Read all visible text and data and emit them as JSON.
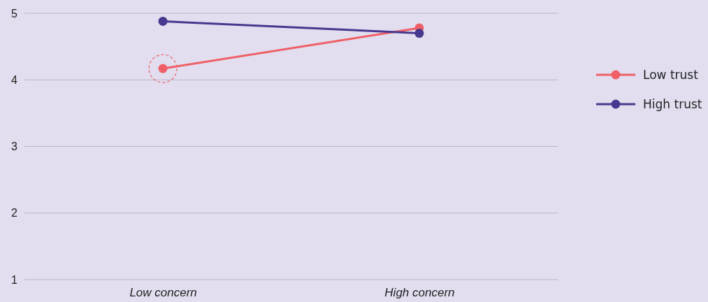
{
  "chart_data": {
    "type": "line",
    "categories": [
      "Low concern",
      "High concern"
    ],
    "series": [
      {
        "name": "Low trust",
        "color": "#ef5f67",
        "values": [
          4.17,
          4.78
        ]
      },
      {
        "name": "High trust",
        "color": "#47388f",
        "values": [
          4.88,
          4.7
        ]
      }
    ],
    "ylim": [
      1,
      5
    ],
    "yticks": [
      1,
      2,
      3,
      4,
      5
    ],
    "grid": "y",
    "legend": "right",
    "marker": "circle",
    "line_style": "solid"
  }
}
